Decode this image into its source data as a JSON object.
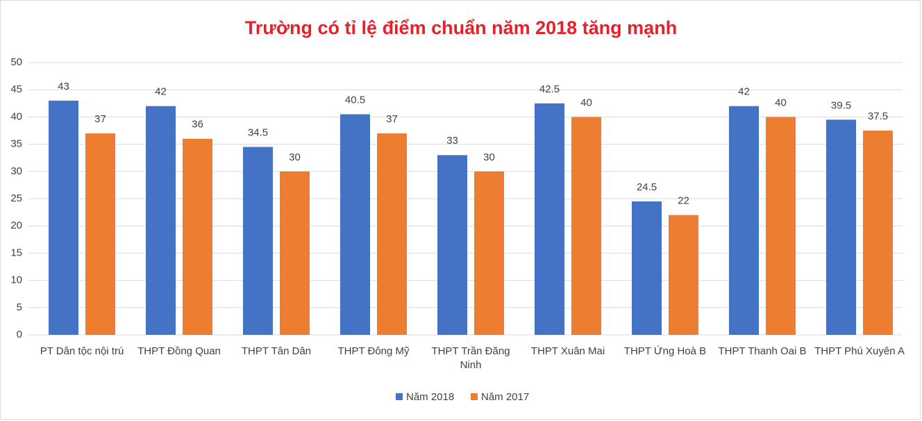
{
  "chart_data": {
    "type": "bar",
    "title": "Trường có tỉ lệ điểm chuẩn năm 2018 tăng mạnh",
    "categories": [
      "PT Dân tộc nội trú",
      "THPT Đồng Quan",
      "THPT Tân Dân",
      "THPT Đông Mỹ",
      "THPT Trần Đăng Ninh",
      "THPT Xuân Mai",
      "THPT Ứng Hoà B",
      "THPT Thanh Oai B",
      "THPT Phú Xuyên A"
    ],
    "series": [
      {
        "name": "Năm 2018",
        "color": "#4472c4",
        "values": [
          43,
          42,
          34.5,
          40.5,
          33,
          42.5,
          24.5,
          42,
          39.5
        ]
      },
      {
        "name": "Năm 2017",
        "color": "#ed7d31",
        "values": [
          37,
          36,
          30,
          37,
          30,
          40,
          22,
          40,
          37.5
        ]
      }
    ],
    "ylim": [
      0,
      50
    ],
    "yticks": [
      0,
      5,
      10,
      15,
      20,
      25,
      30,
      35,
      40,
      45,
      50
    ],
    "grid": true,
    "legend": "bottom"
  }
}
